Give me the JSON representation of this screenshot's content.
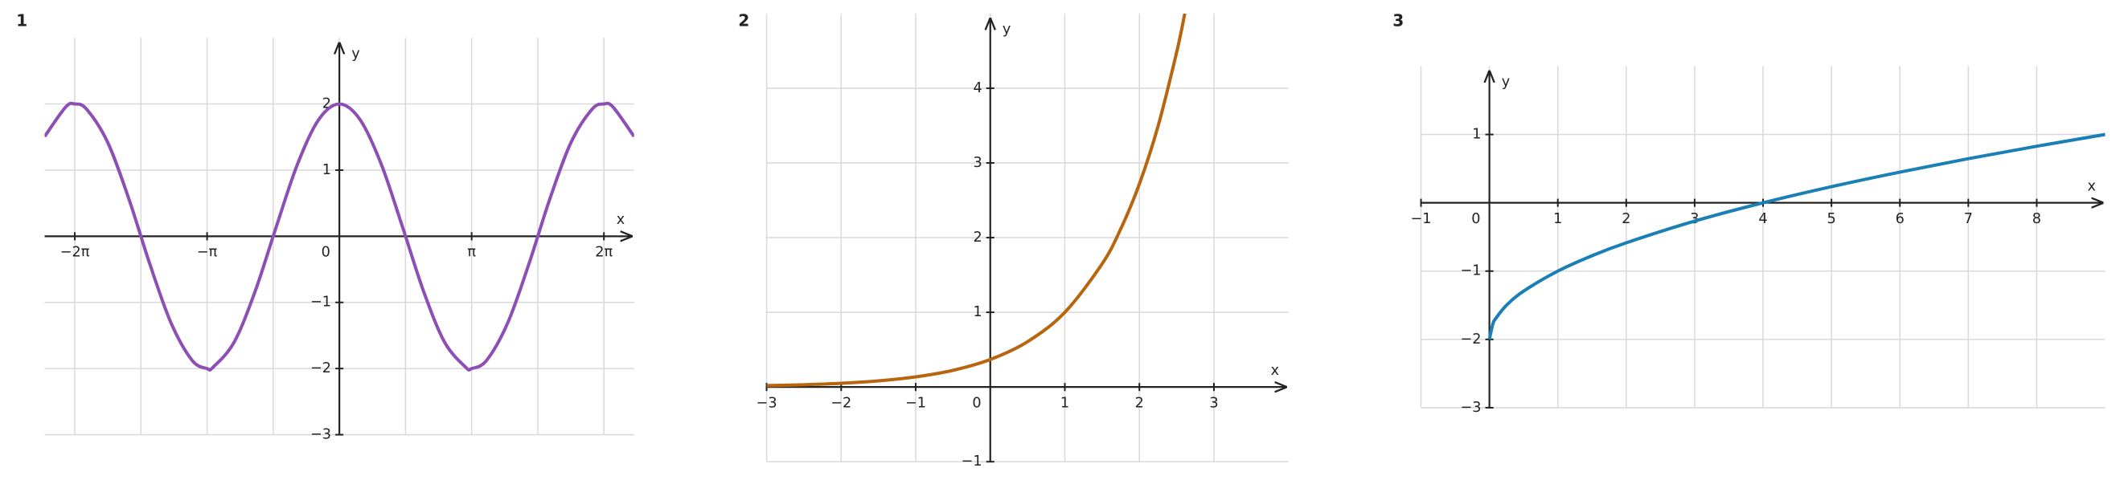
{
  "chart_data": [
    {
      "type": "line",
      "title": "1",
      "xlabel": "x",
      "ylabel": "y",
      "color": "#8e4fb5",
      "xlim": [
        -7,
        7
      ],
      "ylim": [
        -3,
        3
      ],
      "xticks": [
        {
          "value": -6.2832,
          "label": "−2π"
        },
        {
          "value": -3.1416,
          "label": "−π"
        },
        0,
        {
          "value": 3.1416,
          "label": "π"
        },
        {
          "value": 6.2832,
          "label": "2π"
        }
      ],
      "xgrid": [
        -6.2832,
        -4.7124,
        -3.1416,
        -1.5708,
        0,
        1.5708,
        3.1416,
        4.7124,
        6.2832
      ],
      "yticks": [
        {
          "value": -3,
          "label": "−3"
        },
        {
          "value": -2,
          "label": "−2"
        },
        {
          "value": -1,
          "label": "−1"
        },
        1,
        2
      ],
      "grid": true,
      "x": [
        -7,
        -6.5,
        -6.2832,
        -6,
        -5.5,
        -5,
        -4.5,
        -4,
        -3.5,
        -3.1416,
        -3,
        -2.5,
        -2,
        -1.5,
        -1,
        -0.5,
        0,
        0.5,
        1,
        1.5,
        2,
        2.5,
        3,
        3.1416,
        3.5,
        4,
        4.5,
        5,
        5.5,
        6,
        6.2832,
        6.5,
        7
      ],
      "values": [
        1.508,
        1.953,
        2,
        1.92,
        1.417,
        0.567,
        -0.422,
        -1.307,
        -1.873,
        -2,
        -1.98,
        -1.602,
        -0.832,
        0.141,
        1.081,
        1.755,
        2,
        1.755,
        1.081,
        0.141,
        -0.832,
        -1.602,
        -1.98,
        -2,
        -1.873,
        -1.307,
        -0.422,
        0.567,
        1.417,
        1.92,
        2,
        1.953,
        1.508
      ]
    },
    {
      "type": "line",
      "title": "2",
      "xlabel": "x",
      "ylabel": "y",
      "color": "#b8650f",
      "xlim": [
        -3,
        4
      ],
      "ylim": [
        -1,
        5
      ],
      "xticks": [
        {
          "value": -3,
          "label": "−3"
        },
        {
          "value": -2,
          "label": "−2"
        },
        {
          "value": -1,
          "label": "−1"
        },
        0,
        1,
        2,
        3
      ],
      "yticks": [
        {
          "value": -1,
          "label": "−1"
        },
        1,
        2,
        3,
        4
      ],
      "grid": true,
      "x": [
        -3,
        -2.5,
        -2,
        -1.5,
        -1,
        -0.5,
        0,
        0.5,
        1,
        1.5,
        1.75,
        2,
        2.25,
        2.5,
        2.6094
      ],
      "values": [
        0.0183,
        0.0302,
        0.0498,
        0.0821,
        0.1353,
        0.2231,
        0.3679,
        0.6065,
        1,
        1.6487,
        2.117,
        2.7183,
        3.4903,
        4.4817,
        5
      ]
    },
    {
      "type": "line",
      "title": "3",
      "xlabel": "x",
      "ylabel": "y",
      "color": "#1a7fb5",
      "xlim": [
        -1,
        9
      ],
      "ylim": [
        -3,
        2
      ],
      "xticks": [
        {
          "value": -1,
          "label": "−1"
        },
        0,
        1,
        2,
        3,
        4,
        5,
        6,
        7,
        8
      ],
      "yticks": [
        {
          "value": -3,
          "label": "−3"
        },
        {
          "value": -2,
          "label": "−2"
        },
        {
          "value": -1,
          "label": "−1"
        },
        1
      ],
      "grid": true,
      "x": [
        0,
        0.05,
        0.1,
        0.25,
        0.5,
        1,
        1.5,
        2,
        3,
        4,
        5,
        6,
        7,
        8,
        9
      ],
      "values": [
        -2,
        -1.776,
        -1.684,
        -1.5,
        -1.293,
        -1,
        -0.775,
        -0.586,
        -0.268,
        0,
        0.236,
        0.449,
        0.646,
        0.828,
        1
      ]
    }
  ]
}
